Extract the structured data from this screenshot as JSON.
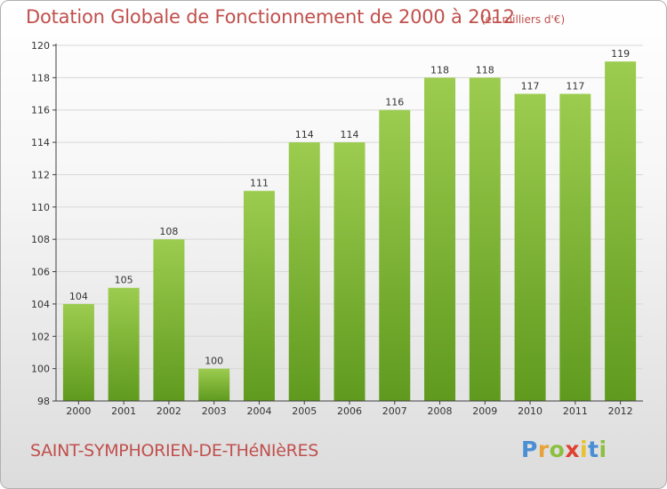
{
  "title": "Dotation Globale de Fonctionnement de 2000 à 2012",
  "unit_note": "(en milliers d'€)",
  "place_name": "SAINT-SYMPHORIEN-DE-THéNIèRES",
  "logo": {
    "letters": [
      "P",
      "r",
      "o",
      "x",
      "i",
      "t",
      "i"
    ],
    "colors": [
      "#4a8fd4",
      "#e8a23a",
      "#8cc040",
      "#e04030",
      "#e8c030",
      "#4a8fd4",
      "#8cc040"
    ]
  },
  "colors": {
    "accent": "#c0504d",
    "bar_top": "#9ccc4f",
    "bar_bottom": "#5f9a1e",
    "grid": "#d8d8d8",
    "axis": "#404040"
  },
  "chart_data": {
    "type": "bar",
    "categories": [
      "2000",
      "2001",
      "2002",
      "2003",
      "2004",
      "2005",
      "2006",
      "2007",
      "2008",
      "2009",
      "2010",
      "2011",
      "2012"
    ],
    "values": [
      104,
      105,
      108,
      100,
      111,
      114,
      114,
      116,
      118,
      118,
      117,
      117,
      119
    ],
    "ylim": [
      98,
      120
    ],
    "yticks": [
      98,
      100,
      102,
      104,
      106,
      108,
      110,
      112,
      114,
      116,
      118,
      120
    ],
    "title": "Dotation Globale de Fonctionnement de 2000 à 2012",
    "xlabel": "",
    "ylabel": "",
    "grid": true
  }
}
